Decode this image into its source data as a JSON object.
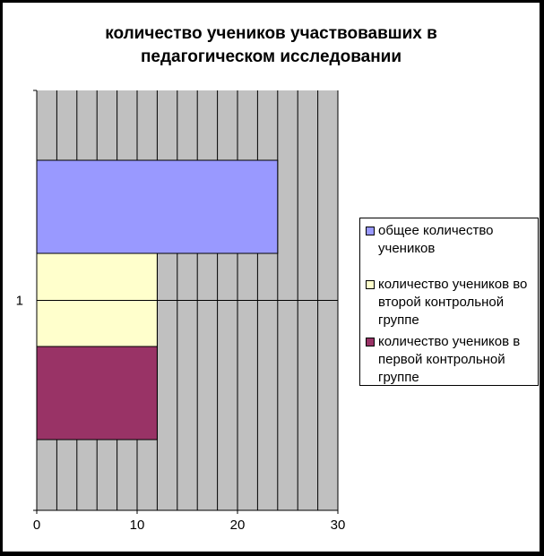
{
  "chart_data": {
    "type": "bar",
    "orientation": "horizontal",
    "title_lines": [
      "количество учеников участвовавших в",
      "педагогическом исследовании"
    ],
    "categories": [
      "1"
    ],
    "series": [
      {
        "name": "общее количество учеников",
        "values": [
          24
        ],
        "color": "#9999FF"
      },
      {
        "name": "количество учеников во второй контрольной группе",
        "values": [
          12
        ],
        "color": "#FFFFCC"
      },
      {
        "name": "количество учеников в первой контрольной группе",
        "values": [
          12
        ],
        "color": "#993366"
      }
    ],
    "xlim": [
      0,
      30
    ],
    "x_ticks": [
      0,
      10,
      20,
      30
    ],
    "x_tick_labels": [
      "0",
      "10",
      "20",
      "30"
    ],
    "grid": true,
    "plot_background": "#C0C0C0",
    "legend_position": "right"
  }
}
